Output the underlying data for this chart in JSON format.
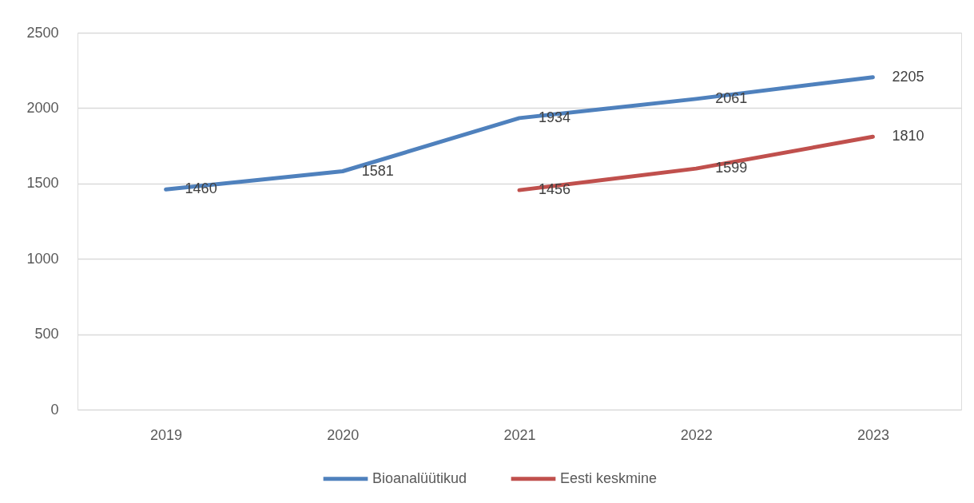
{
  "chart_data": {
    "type": "line",
    "categories": [
      "2019",
      "2020",
      "2021",
      "2022",
      "2023"
    ],
    "series": [
      {
        "name": "Bioanalüütikud",
        "color": "#4f81bd",
        "values": [
          1460,
          1581,
          1934,
          2061,
          2205
        ]
      },
      {
        "name": "Eesti keskmine",
        "color": "#c0504d",
        "values": [
          null,
          null,
          1456,
          1599,
          1810
        ]
      }
    ],
    "ylim": [
      0,
      2500
    ],
    "yticks": [
      0,
      500,
      1000,
      1500,
      2000,
      2500
    ],
    "grid": "y",
    "legend": "bottom",
    "data_labels": true
  }
}
